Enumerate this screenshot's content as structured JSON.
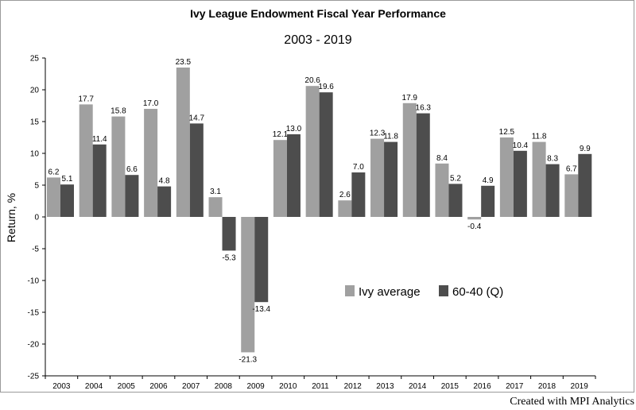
{
  "chart_data": {
    "type": "bar",
    "title": "Ivy League Endowment Fiscal Year Performance",
    "subtitle": "2003 - 2019",
    "xlabel": "",
    "ylabel": "Return, %",
    "ylim": [
      -25,
      25
    ],
    "yticks": [
      25,
      20,
      15,
      10,
      5,
      0,
      -5,
      -10,
      -15,
      -20,
      -25
    ],
    "categories": [
      "2003",
      "2004",
      "2005",
      "2006",
      "2007",
      "2008",
      "2009",
      "2010",
      "2011",
      "2012",
      "2013",
      "2014",
      "2015",
      "2016",
      "2017",
      "2018",
      "2019"
    ],
    "series": [
      {
        "name": "Ivy average",
        "color": "#a0a0a0",
        "values": [
          6.2,
          17.7,
          15.8,
          17.0,
          23.5,
          3.1,
          -21.3,
          12.1,
          20.6,
          2.6,
          12.3,
          17.9,
          8.4,
          -0.4,
          12.5,
          11.8,
          6.7
        ]
      },
      {
        "name": "60-40 (Q)",
        "color": "#4d4d4d",
        "values": [
          5.1,
          11.4,
          6.6,
          4.8,
          14.7,
          -5.3,
          -13.4,
          13.0,
          19.6,
          7.0,
          11.8,
          16.3,
          5.2,
          4.9,
          10.4,
          8.3,
          9.9
        ]
      }
    ],
    "legend": "inside-lower-right",
    "grid": false
  },
  "credit": "Created with MPI Analytics"
}
